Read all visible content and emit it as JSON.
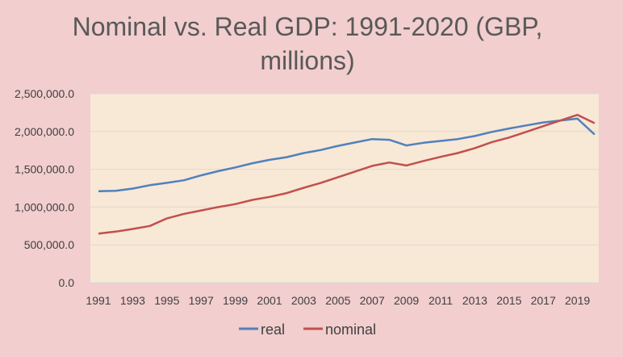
{
  "chart_data": {
    "type": "line",
    "title": "Nominal vs. Real GDP: 1991-2020 (GBP, millions)",
    "title_lines": [
      "Nominal vs. Real GDP: 1991-2020 (GBP,",
      "millions)"
    ],
    "xlabel": "",
    "ylabel": "",
    "x": [
      1991,
      1992,
      1993,
      1994,
      1995,
      1996,
      1997,
      1998,
      1999,
      2000,
      2001,
      2002,
      2003,
      2004,
      2005,
      2006,
      2007,
      2008,
      2009,
      2010,
      2011,
      2012,
      2013,
      2014,
      2015,
      2016,
      2017,
      2018,
      2019,
      2020
    ],
    "x_tick_labels": [
      "1991",
      "1993",
      "1995",
      "1997",
      "1999",
      "2001",
      "2003",
      "2005",
      "2007",
      "2009",
      "2011",
      "2013",
      "2015",
      "2017",
      "2019"
    ],
    "ylim": [
      0,
      2500000
    ],
    "y_ticks": [
      0,
      500000,
      1000000,
      1500000,
      2000000,
      2500000
    ],
    "y_tick_labels": [
      "0.0",
      "500,000.0",
      "1,000,000.0",
      "1,500,000.0",
      "2,000,000.0",
      "2,500,000.0"
    ],
    "grid": true,
    "legend_position": "bottom",
    "series": [
      {
        "name": "real",
        "color": "#4f81bd",
        "values": [
          1210000,
          1215000,
          1245000,
          1290000,
          1320000,
          1355000,
          1420000,
          1475000,
          1525000,
          1580000,
          1625000,
          1660000,
          1715000,
          1755000,
          1810000,
          1855000,
          1900000,
          1890000,
          1815000,
          1850000,
          1875000,
          1900000,
          1940000,
          1995000,
          2040000,
          2080000,
          2120000,
          2145000,
          2170000,
          1960000
        ]
      },
      {
        "name": "nominal",
        "color": "#c0504d",
        "values": [
          650000,
          675000,
          710000,
          750000,
          850000,
          910000,
          955000,
          1000000,
          1040000,
          1095000,
          1135000,
          1185000,
          1255000,
          1320000,
          1395000,
          1470000,
          1545000,
          1590000,
          1550000,
          1610000,
          1665000,
          1715000,
          1780000,
          1860000,
          1920000,
          1995000,
          2070000,
          2145000,
          2220000,
          2110000
        ]
      }
    ],
    "colors": {
      "background": "#f2cece",
      "plot_background": "#f8e8d6",
      "gridline": "#e6d6d0",
      "axis_line": "#d9d9d9",
      "title": "#595959",
      "tick_text": "#404040"
    }
  }
}
